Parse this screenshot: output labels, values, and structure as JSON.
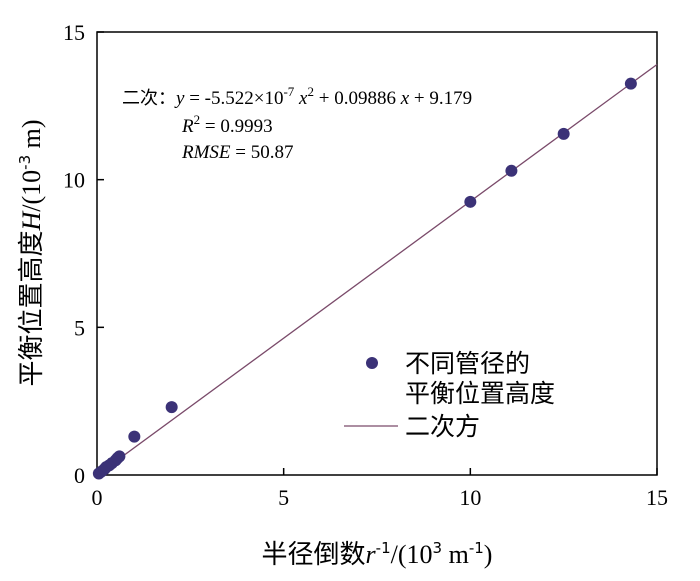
{
  "chart_data": {
    "type": "scatter",
    "xlabel": {
      "prefix": "半径倒数",
      "var": "r",
      "sup": "-1",
      "unit_open": "/(10",
      "unit_sup": "3",
      "unit_mid": " m",
      "unit_sup2": "-1",
      "unit_close": ")"
    },
    "ylabel": {
      "prefix": "平衡位置高度",
      "var": "H",
      "unit_open": "/(10",
      "unit_sup": "-3",
      "unit_close": " m)"
    },
    "xlim": [
      0,
      15
    ],
    "ylim": [
      0,
      15
    ],
    "x_ticks": [
      "0",
      "5",
      "10",
      "15"
    ],
    "y_ticks": [
      "0",
      "5",
      "10",
      "15"
    ],
    "grid": false,
    "legend_placement": "right-center",
    "series": [
      {
        "name": "不同管径的平衡位置高度",
        "legend_lines": [
          "不同管径的",
          "平衡位置高度"
        ],
        "marker": "circle",
        "color": "#3b3277",
        "points": [
          {
            "x": 0.05,
            "y": 0.05
          },
          {
            "x": 0.12,
            "y": 0.12
          },
          {
            "x": 0.2,
            "y": 0.2
          },
          {
            "x": 0.25,
            "y": 0.27
          },
          {
            "x": 0.33,
            "y": 0.33
          },
          {
            "x": 0.4,
            "y": 0.4
          },
          {
            "x": 0.5,
            "y": 0.5
          },
          {
            "x": 0.55,
            "y": 0.57
          },
          {
            "x": 0.6,
            "y": 0.63
          },
          {
            "x": 1.0,
            "y": 1.3
          },
          {
            "x": 2.0,
            "y": 2.3
          },
          {
            "x": 10.0,
            "y": 9.25
          },
          {
            "x": 11.1,
            "y": 10.3
          },
          {
            "x": 12.5,
            "y": 11.55
          },
          {
            "x": 14.3,
            "y": 13.25
          }
        ]
      },
      {
        "name": "二次方",
        "type": "line",
        "color": "#7a4a6a",
        "fit": {
          "a": -5.522e-07,
          "b": 0.09886,
          "c": 9.179
        },
        "line_points": [
          {
            "x": 0,
            "y": 0
          },
          {
            "x": 15,
            "y": 13.9
          }
        ]
      }
    ],
    "annotation": {
      "label": "二次：",
      "eq_lhs": "y",
      "eq_a": " = -5.522×10",
      "eq_a_exp": "-7",
      "eq_x2": "x",
      "eq_x2_exp": "2",
      "eq_rest": " + 0.09886 ",
      "eq_x": "x",
      "eq_c": " + 9.179",
      "r2_var": "R",
      "r2_exp": "2",
      "r2_val": " = 0.9993",
      "rmse_var": "RMSE",
      "rmse_val": " = 50.87"
    }
  }
}
